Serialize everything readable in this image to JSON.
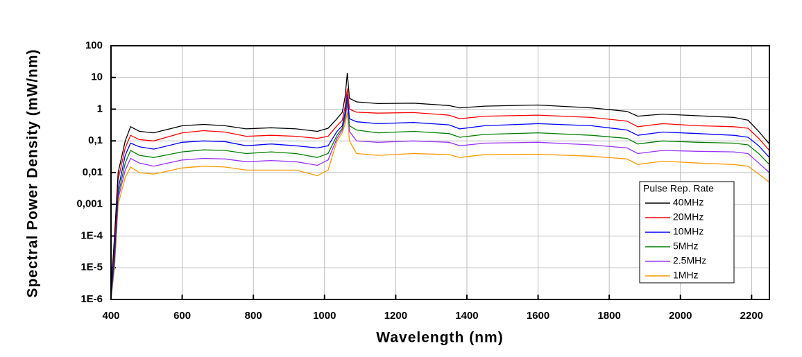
{
  "chart_data": {
    "type": "line",
    "xlabel": "Wavelength (nm)",
    "ylabel": "Spectral Power Density (mW/nm)",
    "xlim": [
      400,
      2250
    ],
    "xticks": [
      400,
      600,
      800,
      1000,
      1200,
      1400,
      1600,
      1800,
      2000,
      2200
    ],
    "ylim": [
      1e-06,
      100
    ],
    "yticks": [
      {
        "value": 1e-06,
        "label": "1E-6"
      },
      {
        "value": 1e-05,
        "label": "1E-5"
      },
      {
        "value": 0.0001,
        "label": "1E-4"
      },
      {
        "value": 0.001,
        "label": "0,001"
      },
      {
        "value": 0.01,
        "label": "0,01"
      },
      {
        "value": 0.1,
        "label": "0,1"
      },
      1,
      10,
      100
    ],
    "log_y": true,
    "grid": true,
    "legend_title": "Pulse Rep. Rate",
    "legend_position": "lower right",
    "x": [
      400,
      410,
      420,
      440,
      455,
      480,
      520,
      600,
      660,
      720,
      780,
      850,
      920,
      980,
      1010,
      1035,
      1050,
      1058,
      1064,
      1070,
      1090,
      1150,
      1250,
      1350,
      1380,
      1450,
      1600,
      1750,
      1850,
      1880,
      1950,
      2050,
      2150,
      2190,
      2220,
      2250
    ],
    "series": [
      {
        "name": "40MHz",
        "color": "#000000",
        "values": [
          2e-06,
          0.0001,
          0.01,
          0.1,
          0.28,
          0.2,
          0.18,
          0.3,
          0.33,
          0.3,
          0.24,
          0.26,
          0.24,
          0.2,
          0.25,
          0.5,
          0.8,
          2.5,
          14,
          2.2,
          1.7,
          1.5,
          1.55,
          1.3,
          1.1,
          1.25,
          1.35,
          1.1,
          0.85,
          0.6,
          0.7,
          0.62,
          0.55,
          0.45,
          0.2,
          0.08
        ]
      },
      {
        "name": "20MHz",
        "color": "#ff0000",
        "values": [
          2e-06,
          6e-05,
          0.006,
          0.06,
          0.15,
          0.11,
          0.1,
          0.18,
          0.21,
          0.19,
          0.14,
          0.15,
          0.14,
          0.12,
          0.14,
          0.3,
          0.45,
          1.2,
          4.5,
          1.0,
          0.8,
          0.75,
          0.78,
          0.65,
          0.5,
          0.6,
          0.65,
          0.55,
          0.42,
          0.28,
          0.35,
          0.3,
          0.28,
          0.25,
          0.12,
          0.05
        ]
      },
      {
        "name": "10MHz",
        "color": "#0000ff",
        "values": [
          1.5e-06,
          3e-05,
          0.003,
          0.035,
          0.085,
          0.065,
          0.055,
          0.09,
          0.1,
          0.095,
          0.07,
          0.08,
          0.07,
          0.06,
          0.07,
          0.2,
          0.3,
          0.8,
          3,
          0.5,
          0.4,
          0.35,
          0.38,
          0.32,
          0.24,
          0.3,
          0.35,
          0.3,
          0.22,
          0.15,
          0.19,
          0.17,
          0.15,
          0.13,
          0.07,
          0.03
        ]
      },
      {
        "name": "5MHz",
        "color": "#008000",
        "values": [
          1.2e-06,
          2e-05,
          0.002,
          0.02,
          0.05,
          0.035,
          0.03,
          0.045,
          0.052,
          0.05,
          0.04,
          0.045,
          0.04,
          0.03,
          0.04,
          0.15,
          0.25,
          0.6,
          2.2,
          0.3,
          0.22,
          0.18,
          0.2,
          0.17,
          0.13,
          0.16,
          0.18,
          0.15,
          0.12,
          0.08,
          0.1,
          0.09,
          0.085,
          0.075,
          0.04,
          0.018
        ]
      },
      {
        "name": "2.5MHz",
        "color": "#9b30ff",
        "values": [
          1e-06,
          1.5e-05,
          0.0015,
          0.012,
          0.028,
          0.02,
          0.016,
          0.025,
          0.028,
          0.027,
          0.022,
          0.024,
          0.022,
          0.017,
          0.025,
          0.12,
          0.22,
          0.5,
          1.6,
          0.2,
          0.1,
          0.09,
          0.1,
          0.09,
          0.07,
          0.085,
          0.09,
          0.075,
          0.06,
          0.04,
          0.05,
          0.047,
          0.045,
          0.04,
          0.02,
          0.01
        ]
      },
      {
        "name": "1MHz",
        "color": "#ff9900",
        "values": [
          1e-06,
          1e-05,
          0.001,
          0.007,
          0.015,
          0.01,
          0.009,
          0.014,
          0.016,
          0.015,
          0.012,
          0.012,
          0.012,
          0.008,
          0.012,
          0.1,
          0.18,
          0.35,
          0.8,
          0.1,
          0.04,
          0.035,
          0.04,
          0.037,
          0.03,
          0.037,
          0.038,
          0.033,
          0.027,
          0.018,
          0.023,
          0.02,
          0.018,
          0.016,
          0.009,
          0.005
        ]
      }
    ]
  }
}
